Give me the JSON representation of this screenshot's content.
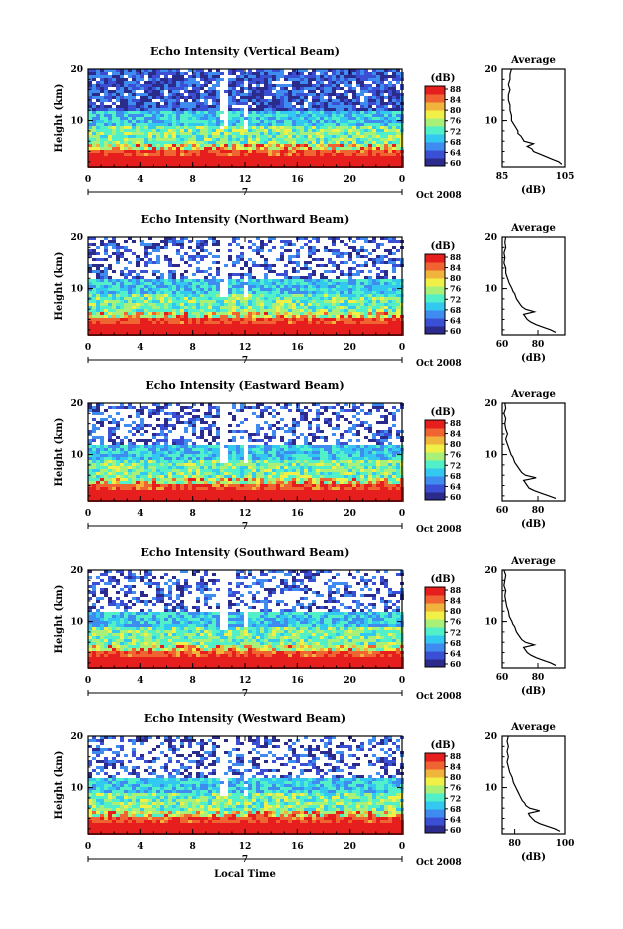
{
  "chart_data": [
    {
      "type": "heatmap",
      "title": "Echo Intensity (Vertical Beam)",
      "ylabel": "Height (km)",
      "xticks": [
        "0",
        "4",
        "8",
        "12",
        "16",
        "20",
        "0"
      ],
      "yticks": [
        "10",
        "20"
      ],
      "date_marker": "7",
      "date_label": "Oct 2008",
      "colorbar": {
        "label": "(dB)",
        "ticks": [
          "88",
          "84",
          "80",
          "76",
          "72",
          "68",
          "64",
          "60"
        ],
        "range": [
          60,
          88
        ]
      },
      "profile": {
        "title": "Average",
        "xlabel": "(dB)",
        "xticks": [
          "85",
          "105"
        ],
        "xlim": [
          85,
          105
        ],
        "yticks": [
          "10",
          "20"
        ],
        "ylim": [
          1,
          20
        ],
        "height": [
          1.5,
          2,
          2.5,
          3,
          3.5,
          4,
          4.5,
          5,
          5.5,
          6,
          6.5,
          7,
          7.5,
          8,
          8.5,
          9,
          9.5,
          10,
          11,
          12,
          13,
          14,
          15,
          16,
          17,
          18,
          19,
          20
        ],
        "value": [
          104,
          103,
          101,
          99,
          97,
          95,
          94.5,
          93,
          95,
          92,
          91.5,
          91,
          90,
          90,
          89.5,
          89,
          88.5,
          88,
          88,
          87.5,
          87.5,
          87,
          87,
          87.5,
          87,
          87.5,
          87.5,
          88
        ]
      }
    },
    {
      "type": "heatmap",
      "title": "Echo Intensity (Northward Beam)",
      "ylabel": "Height (km)",
      "xticks": [
        "0",
        "4",
        "8",
        "12",
        "16",
        "20",
        "0"
      ],
      "yticks": [
        "10",
        "20"
      ],
      "date_marker": "7",
      "date_label": "Oct 2008",
      "colorbar": {
        "label": "(dB)",
        "ticks": [
          "88",
          "84",
          "80",
          "76",
          "72",
          "68",
          "64",
          "60"
        ],
        "range": [
          60,
          88
        ]
      },
      "profile": {
        "title": "Average",
        "xlabel": "(dB)",
        "xticks": [
          "60",
          "80"
        ],
        "xlim": [
          60,
          95
        ],
        "yticks": [
          "10",
          "20"
        ],
        "ylim": [
          1,
          20
        ],
        "height": [
          1.5,
          2,
          2.5,
          3,
          3.5,
          4,
          4.5,
          5,
          5.5,
          6,
          6.5,
          7,
          7.5,
          8,
          8.5,
          9,
          9.5,
          10,
          11,
          12,
          13,
          14,
          15,
          16,
          17,
          18,
          19,
          20
        ],
        "value": [
          90,
          87,
          83,
          79,
          76,
          74,
          73,
          72,
          78,
          73,
          71,
          70,
          69,
          68,
          67.5,
          67,
          66,
          65.5,
          64,
          63,
          62,
          62,
          61,
          61.5,
          61,
          62,
          61.5,
          62
        ]
      }
    },
    {
      "type": "heatmap",
      "title": "Echo Intensity (Eastward Beam)",
      "ylabel": "Height (km)",
      "xticks": [
        "0",
        "4",
        "8",
        "12",
        "16",
        "20",
        "0"
      ],
      "yticks": [
        "10",
        "20"
      ],
      "date_marker": "7",
      "date_label": "Oct 2008",
      "colorbar": {
        "label": "(dB)",
        "ticks": [
          "88",
          "84",
          "80",
          "76",
          "72",
          "68",
          "64",
          "60"
        ],
        "range": [
          60,
          88
        ]
      },
      "profile": {
        "title": "Average",
        "xlabel": "(dB)",
        "xticks": [
          "60",
          "80"
        ],
        "xlim": [
          60,
          95
        ],
        "yticks": [
          "10",
          "20"
        ],
        "ylim": [
          1,
          20
        ],
        "height": [
          1.5,
          2,
          2.5,
          3,
          3.5,
          4,
          4.5,
          5,
          5.5,
          6,
          6.5,
          7,
          7.5,
          8,
          8.5,
          9,
          9.5,
          10,
          11,
          12,
          13,
          14,
          15,
          16,
          17,
          18,
          19,
          20
        ],
        "value": [
          90,
          86,
          82,
          78,
          75,
          74,
          73,
          72,
          79,
          73,
          71,
          70,
          69,
          68,
          67,
          66.5,
          66,
          65,
          64,
          63,
          62,
          63,
          62,
          61.5,
          62,
          61,
          62,
          61.5
        ]
      }
    },
    {
      "type": "heatmap",
      "title": "Echo Intensity (Southward Beam)",
      "ylabel": "Height (km)",
      "xticks": [
        "0",
        "4",
        "8",
        "12",
        "16",
        "20",
        "0"
      ],
      "yticks": [
        "10",
        "20"
      ],
      "date_marker": "7",
      "date_label": "Oct 2008",
      "colorbar": {
        "label": "(dB)",
        "ticks": [
          "88",
          "84",
          "80",
          "76",
          "72",
          "68",
          "64",
          "60"
        ],
        "range": [
          60,
          88
        ]
      },
      "profile": {
        "title": "Average",
        "xlabel": "(dB)",
        "xticks": [
          "60",
          "80"
        ],
        "xlim": [
          60,
          95
        ],
        "yticks": [
          "10",
          "20"
        ],
        "ylim": [
          1,
          20
        ],
        "height": [
          1.5,
          2,
          2.5,
          3,
          3.5,
          4,
          4.5,
          5,
          5.5,
          6,
          6.5,
          7,
          7.5,
          8,
          8.5,
          9,
          9.5,
          10,
          11,
          12,
          13,
          14,
          15,
          16,
          17,
          18,
          19,
          20
        ],
        "value": [
          90,
          87,
          83,
          79,
          76,
          74,
          73,
          72,
          78,
          73,
          71,
          70,
          69,
          68,
          67.5,
          67,
          66,
          65.5,
          64,
          63.5,
          62.5,
          62,
          61.5,
          62,
          61,
          61.5,
          62,
          61
        ]
      }
    },
    {
      "type": "heatmap",
      "title": "Echo Intensity (Westward Beam)",
      "ylabel": "Height (km)",
      "xlabel": "Local Time",
      "xticks": [
        "0",
        "4",
        "8",
        "12",
        "16",
        "20",
        "0"
      ],
      "yticks": [
        "10",
        "20"
      ],
      "date_marker": "7",
      "date_label": "Oct 2008",
      "colorbar": {
        "label": "(dB)",
        "ticks": [
          "88",
          "84",
          "80",
          "76",
          "72",
          "68",
          "64",
          "60"
        ],
        "range": [
          60,
          88
        ]
      },
      "profile": {
        "title": "Average",
        "xlabel": "(dB)",
        "xticks": [
          "80",
          "100"
        ],
        "xlim": [
          75,
          100
        ],
        "yticks": [
          "10",
          "20"
        ],
        "ylim": [
          1,
          20
        ],
        "height": [
          1.5,
          2,
          2.5,
          3,
          3.5,
          4,
          4.5,
          5,
          5.5,
          6,
          6.5,
          7,
          7.5,
          8,
          8.5,
          9,
          9.5,
          10,
          11,
          12,
          13,
          14,
          15,
          16,
          17,
          18,
          19,
          20
        ],
        "value": [
          98,
          96,
          93,
          90,
          88,
          87,
          86,
          85.5,
          90,
          86,
          84.5,
          84,
          83,
          82.5,
          82,
          81.5,
          81,
          80.5,
          79.5,
          79,
          78,
          77.5,
          77,
          77.5,
          77,
          77.5,
          77,
          77.5
        ]
      }
    }
  ],
  "colors": {
    "colormap": [
      "#2b2b8c",
      "#3b4fd4",
      "#3f8cf0",
      "#33c8f0",
      "#52f0c8",
      "#a8f078",
      "#f0f046",
      "#f0b43c",
      "#f06432",
      "#e61e1e"
    ],
    "axis": "#000000",
    "background": "#ffffff"
  }
}
